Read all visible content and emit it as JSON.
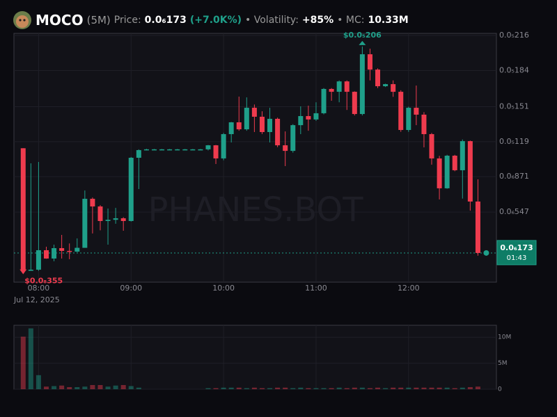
{
  "header": {
    "symbol": "MOCO",
    "interval": "(5M)",
    "price_label": "Price:",
    "price": "0.0₆173",
    "change": "(+7.0K%)",
    "volatility_label": "• Volatility:",
    "volatility": "+85%",
    "mc_label": "• MC:",
    "mc": "10.33M"
  },
  "chart_data": {
    "type": "candlestick",
    "watermark": "PHANES.BOT",
    "date": "Jul 12, 2025",
    "up_color": "#1fa08a",
    "down_color": "#ef3b4e",
    "grid": true,
    "x": [
      "07:50",
      "07:55",
      "08:00",
      "08:05",
      "08:10",
      "08:15",
      "08:20",
      "08:25",
      "08:30",
      "08:35",
      "08:40",
      "08:45",
      "08:50",
      "08:55",
      "09:00",
      "09:05",
      "09:10",
      "09:15",
      "09:20",
      "09:25",
      "09:30",
      "09:35",
      "09:40",
      "09:45",
      "09:50",
      "09:55",
      "10:00",
      "10:05",
      "10:10",
      "10:15",
      "10:20",
      "10:25",
      "10:30",
      "10:35",
      "10:40",
      "10:45",
      "10:50",
      "10:55",
      "11:00",
      "11:05",
      "11:10",
      "11:15",
      "11:20",
      "11:25",
      "11:30",
      "11:35",
      "11:40",
      "11:45",
      "11:50",
      "11:55",
      "12:00",
      "12:05",
      "12:10",
      "12:15",
      "12:20",
      "12:25",
      "12:30",
      "12:35",
      "12:40",
      "12:45"
    ],
    "open": [
      1.13e-06,
      1e-08,
      2e-08,
      1.98e-07,
      1.22e-07,
      2.17e-07,
      1.92e-07,
      1.85e-07,
      2.2e-07,
      6.68e-07,
      5.98e-07,
      4.65e-07,
      4.76e-07,
      4.9e-07,
      4.65e-07,
      1.043e-06,
      1.113e-06,
      1.12e-06,
      1.12e-06,
      1.12e-06,
      1.12e-06,
      1.12e-06,
      1.12e-06,
      1.12e-06,
      1.12e-06,
      1.157e-06,
      1.037e-06,
      1.259e-06,
      1.367e-06,
      1.303e-06,
      1.5e-06,
      1.418e-06,
      1.278e-06,
      1.399e-06,
      1.157e-06,
      1.106e-06,
      1.341e-06,
      1.424e-06,
      1.393e-06,
      1.45e-06,
      1.672e-06,
      1.646e-06,
      1.741e-06,
      1.646e-06,
      1.443e-06,
      1.989e-06,
      1.849e-06,
      1.697e-06,
      1.716e-06,
      1.646e-06,
      1.297e-06,
      1.5e-06,
      1.437e-06,
      1.259e-06,
      1.037e-06,
      7.64e-07,
      1.062e-06,
      9.29e-07,
      1.195e-06,
      6.43e-07
    ],
    "high": [
      1.13e-06,
      9.92e-07,
      1.005e-06,
      2.3e-07,
      2.49e-07,
      3.38e-07,
      2.6e-07,
      3.06e-07,
      7.44e-07,
      6.8e-07,
      6.1e-07,
      5.79e-07,
      5.85e-07,
      5e-07,
      1.05e-06,
      1.12e-06,
      1.125e-06,
      1.123e-06,
      1.123e-06,
      1.123e-06,
      1.123e-06,
      1.123e-06,
      1.123e-06,
      1.123e-06,
      1.16e-06,
      1.16e-06,
      1.27e-06,
      1.37e-06,
      1.602e-06,
      1.595e-06,
      1.53e-06,
      1.468e-06,
      1.5e-06,
      1.41e-06,
      1.284e-06,
      1.35e-06,
      1.513e-06,
      1.519e-06,
      1.55e-06,
      1.68e-06,
      1.68e-06,
      1.75e-06,
      1.75e-06,
      1.65e-06,
      2.06e-06,
      2.04e-06,
      1.86e-06,
      1.72e-06,
      1.75e-06,
      1.66e-06,
      1.51e-06,
      1.703e-06,
      1.46e-06,
      1.27e-06,
      1.06e-06,
      1.07e-06,
      1.07e-06,
      1.21e-06,
      1.2e-06,
      8.46e-07
    ],
    "low": [
      3.55e-09,
      1e-08,
      1e-08,
      1.2e-07,
      9.7e-08,
      1.22e-07,
      1.16e-07,
      1.8e-07,
      2.2e-07,
      3.51e-07,
      3.8e-07,
      2.49e-07,
      4.4e-07,
      3.76e-07,
      4.6e-07,
      7.57e-07,
      1.11e-06,
      1.118e-06,
      1.118e-06,
      1.118e-06,
      1.118e-06,
      1.118e-06,
      1.118e-06,
      1.118e-06,
      1.11e-06,
      9.86e-07,
      1.02e-06,
      1.183e-06,
      1.29e-06,
      1.29e-06,
      1.278e-06,
      1.26e-06,
      1.183e-06,
      1.14e-06,
      9.67e-07,
      1.09e-06,
      1.259e-06,
      1.29e-06,
      1.38e-06,
      1.44e-06,
      1.564e-06,
      1.55e-06,
      1.48e-06,
      1.43e-06,
      1.43e-06,
      1.75e-06,
      1.68e-06,
      1.69e-06,
      1.6e-06,
      1.28e-06,
      1.28e-06,
      1.341e-06,
      1.138e-06,
      9.8e-07,
      6.62e-07,
      7.6e-07,
      9.2e-07,
      6.7e-07,
      5.6e-07,
      1.48e-07
    ],
    "close": [
      1e-08,
      2e-08,
      1.98e-07,
      1.22e-07,
      2.17e-07,
      1.92e-07,
      1.85e-07,
      2.2e-07,
      6.68e-07,
      5.98e-07,
      4.65e-07,
      4.76e-07,
      4.9e-07,
      4.65e-07,
      1.043e-06,
      1.113e-06,
      1.12e-06,
      1.12e-06,
      1.12e-06,
      1.12e-06,
      1.12e-06,
      1.12e-06,
      1.12e-06,
      1.12e-06,
      1.157e-06,
      1.037e-06,
      1.259e-06,
      1.367e-06,
      1.303e-06,
      1.5e-06,
      1.418e-06,
      1.278e-06,
      1.399e-06,
      1.157e-06,
      1.106e-06,
      1.341e-06,
      1.424e-06,
      1.393e-06,
      1.45e-06,
      1.672e-06,
      1.646e-06,
      1.741e-06,
      1.646e-06,
      1.443e-06,
      1.989e-06,
      1.849e-06,
      1.697e-06,
      1.716e-06,
      1.646e-06,
      1.297e-06,
      1.5e-06,
      1.437e-06,
      1.259e-06,
      1.037e-06,
      7.64e-07,
      1.062e-06,
      9.29e-07,
      1.195e-06,
      6.43e-07,
      1.73e-07
    ],
    "xlim": [
      "07:44",
      "12:57"
    ],
    "xticks": [
      "08:00",
      "09:00",
      "10:00",
      "11:00",
      "12:00"
    ],
    "ylim": [
      -9.4e-08,
      2.18e-06
    ],
    "yticks": [
      {
        "value": 2.16e-06,
        "label": "0.0₅216"
      },
      {
        "value": 1.84e-06,
        "label": "0.0₅184"
      },
      {
        "value": 1.51e-06,
        "label": "0.0₅151"
      },
      {
        "value": 1.19e-06,
        "label": "0.0₅119"
      },
      {
        "value": 8.71e-07,
        "label": "0.0₆871"
      },
      {
        "value": 5.47e-07,
        "label": "0.0₆547"
      }
    ],
    "last_price": {
      "value": 1.73e-07,
      "label": "0.0₆173",
      "countdown": "01:43"
    },
    "annotations": [
      {
        "x": "11:30",
        "value": 2.06e-06,
        "label": "$0.0₅206"
      },
      {
        "x": "07:50",
        "value": 3.55e-09,
        "label": "$0.0₈355"
      }
    ],
    "volume": {
      "values": [
        10100000,
        11700000,
        2700000,
        500000,
        600000,
        700000,
        400000,
        400000,
        500000,
        800000,
        800000,
        500000,
        700000,
        800000,
        600000,
        300000,
        0,
        0,
        0,
        0,
        0,
        0,
        0,
        0,
        200000,
        200000,
        300000,
        300000,
        300000,
        200000,
        300000,
        200000,
        200000,
        300000,
        300000,
        200000,
        300000,
        200000,
        200000,
        200000,
        200000,
        300000,
        200000,
        300000,
        300000,
        200000,
        300000,
        200000,
        300000,
        300000,
        300000,
        300000,
        300000,
        300000,
        300000,
        300000,
        200000,
        300000,
        400000,
        500000
      ],
      "ylim": [
        0,
        12300000
      ],
      "yticks": [
        0,
        {
          "value": 5000000,
          "label": "5M"
        },
        {
          "value": 10000000,
          "label": "10M"
        }
      ]
    }
  }
}
